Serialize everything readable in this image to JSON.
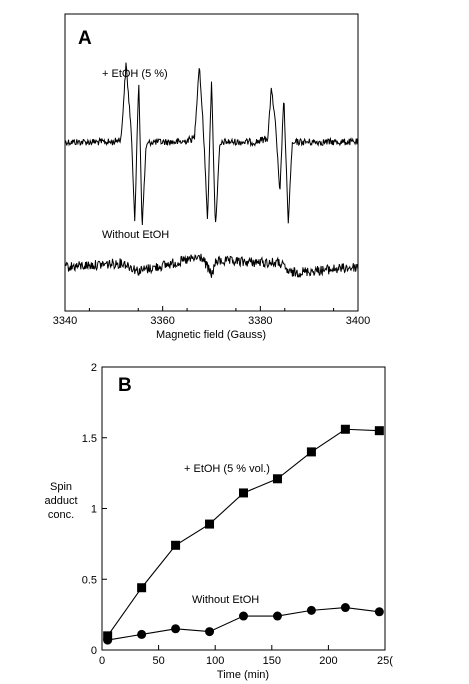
{
  "chart_data": [
    {
      "type": "line",
      "panel_label": "A",
      "xlabel": "Magnetic field (Gauss)",
      "ylabel": "",
      "xlim": [
        3340,
        3400
      ],
      "x_ticks": [
        "3340",
        "3360",
        "3380",
        "3400"
      ],
      "grid": false,
      "series": [
        {
          "name": "+ EtOH (5 %)",
          "description": "EPR spectrum, three split line groups",
          "x": [
            3340,
            3350,
            3351.5,
            3352.5,
            3353.5,
            3354.3,
            3355.1,
            3355.8,
            3356.6,
            3357.5,
            3359,
            3364,
            3366.5,
            3367.5,
            3368.3,
            3369.2,
            3370,
            3370.8,
            3371.7,
            3372.5,
            3374,
            3379,
            3381.5,
            3382.3,
            3383.2,
            3384,
            3384.8,
            3385.7,
            3386.5,
            3387.4,
            3389,
            3400
          ],
          "y": [
            0,
            0,
            0.05,
            1.0,
            0.2,
            -1.0,
            0.8,
            -1.1,
            -0.05,
            0,
            0,
            0,
            0.05,
            1.0,
            0.2,
            -1.0,
            0.8,
            -1.1,
            -0.05,
            0,
            0,
            0,
            0.05,
            0.7,
            0.15,
            -0.7,
            0.6,
            -1.05,
            -0.05,
            0,
            0,
            0
          ]
        },
        {
          "name": "Without EtOH",
          "description": "EPR spectrum, noise baseline",
          "x": [
            3340,
            3352,
            3355,
            3368,
            3370,
            3371,
            3384,
            3386,
            3400
          ],
          "y": [
            0,
            0.1,
            -0.1,
            0.25,
            -0.2,
            0.15,
            0.1,
            -0.15,
            0
          ]
        }
      ]
    },
    {
      "type": "line",
      "panel_label": "B",
      "xlabel": "Time (min)",
      "ylabel": "Spin adduct conc.",
      "ylabel_lines": [
        "Spin",
        "adduct",
        "conc."
      ],
      "xlim": [
        0,
        250
      ],
      "ylim": [
        0,
        2
      ],
      "x_ticks": [
        "0",
        "50",
        "100",
        "150",
        "200",
        "25("
      ],
      "y_ticks": [
        "0",
        "0.5",
        "1",
        "1.5",
        "2"
      ],
      "grid": false,
      "series": [
        {
          "name": "+ EtOH (5 % vol.)",
          "marker": "square",
          "x": [
            5,
            35,
            65,
            95,
            125,
            155,
            185,
            215,
            245
          ],
          "y": [
            0.1,
            0.44,
            0.74,
            0.89,
            1.11,
            1.21,
            1.4,
            1.56,
            1.55
          ]
        },
        {
          "name": "Without EtOH",
          "marker": "circle",
          "x": [
            5,
            35,
            65,
            95,
            125,
            155,
            185,
            215,
            245
          ],
          "y": [
            0.07,
            0.11,
            0.15,
            0.13,
            0.24,
            0.24,
            0.28,
            0.3,
            0.27
          ]
        }
      ]
    }
  ]
}
